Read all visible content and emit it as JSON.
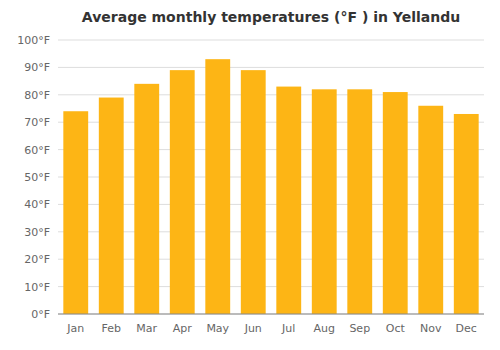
{
  "chart_data": {
    "type": "bar",
    "title": "Average monthly temperatures (°F ) in Yellandu",
    "categories": [
      "Jan",
      "Feb",
      "Mar",
      "Apr",
      "May",
      "Jun",
      "Jul",
      "Aug",
      "Sep",
      "Oct",
      "Nov",
      "Dec"
    ],
    "values": [
      74,
      79,
      84,
      89,
      93,
      89,
      83,
      82,
      82,
      81,
      76,
      73
    ],
    "color": "#FDB515",
    "ylim": [
      0,
      100
    ],
    "yticks": [
      {
        "value": 0,
        "label": "0°F"
      },
      {
        "value": 10,
        "label": "10°F"
      },
      {
        "value": 20,
        "label": "20°F"
      },
      {
        "value": 30,
        "label": "30°F"
      },
      {
        "value": 40,
        "label": "40°F"
      },
      {
        "value": 50,
        "label": "50°F"
      },
      {
        "value": 60,
        "label": "60°F"
      },
      {
        "value": 70,
        "label": "70°F"
      },
      {
        "value": 80,
        "label": "80°F"
      },
      {
        "value": 90,
        "label": "90°F"
      },
      {
        "value": 100,
        "label": "100°F"
      }
    ],
    "grid": true
  }
}
